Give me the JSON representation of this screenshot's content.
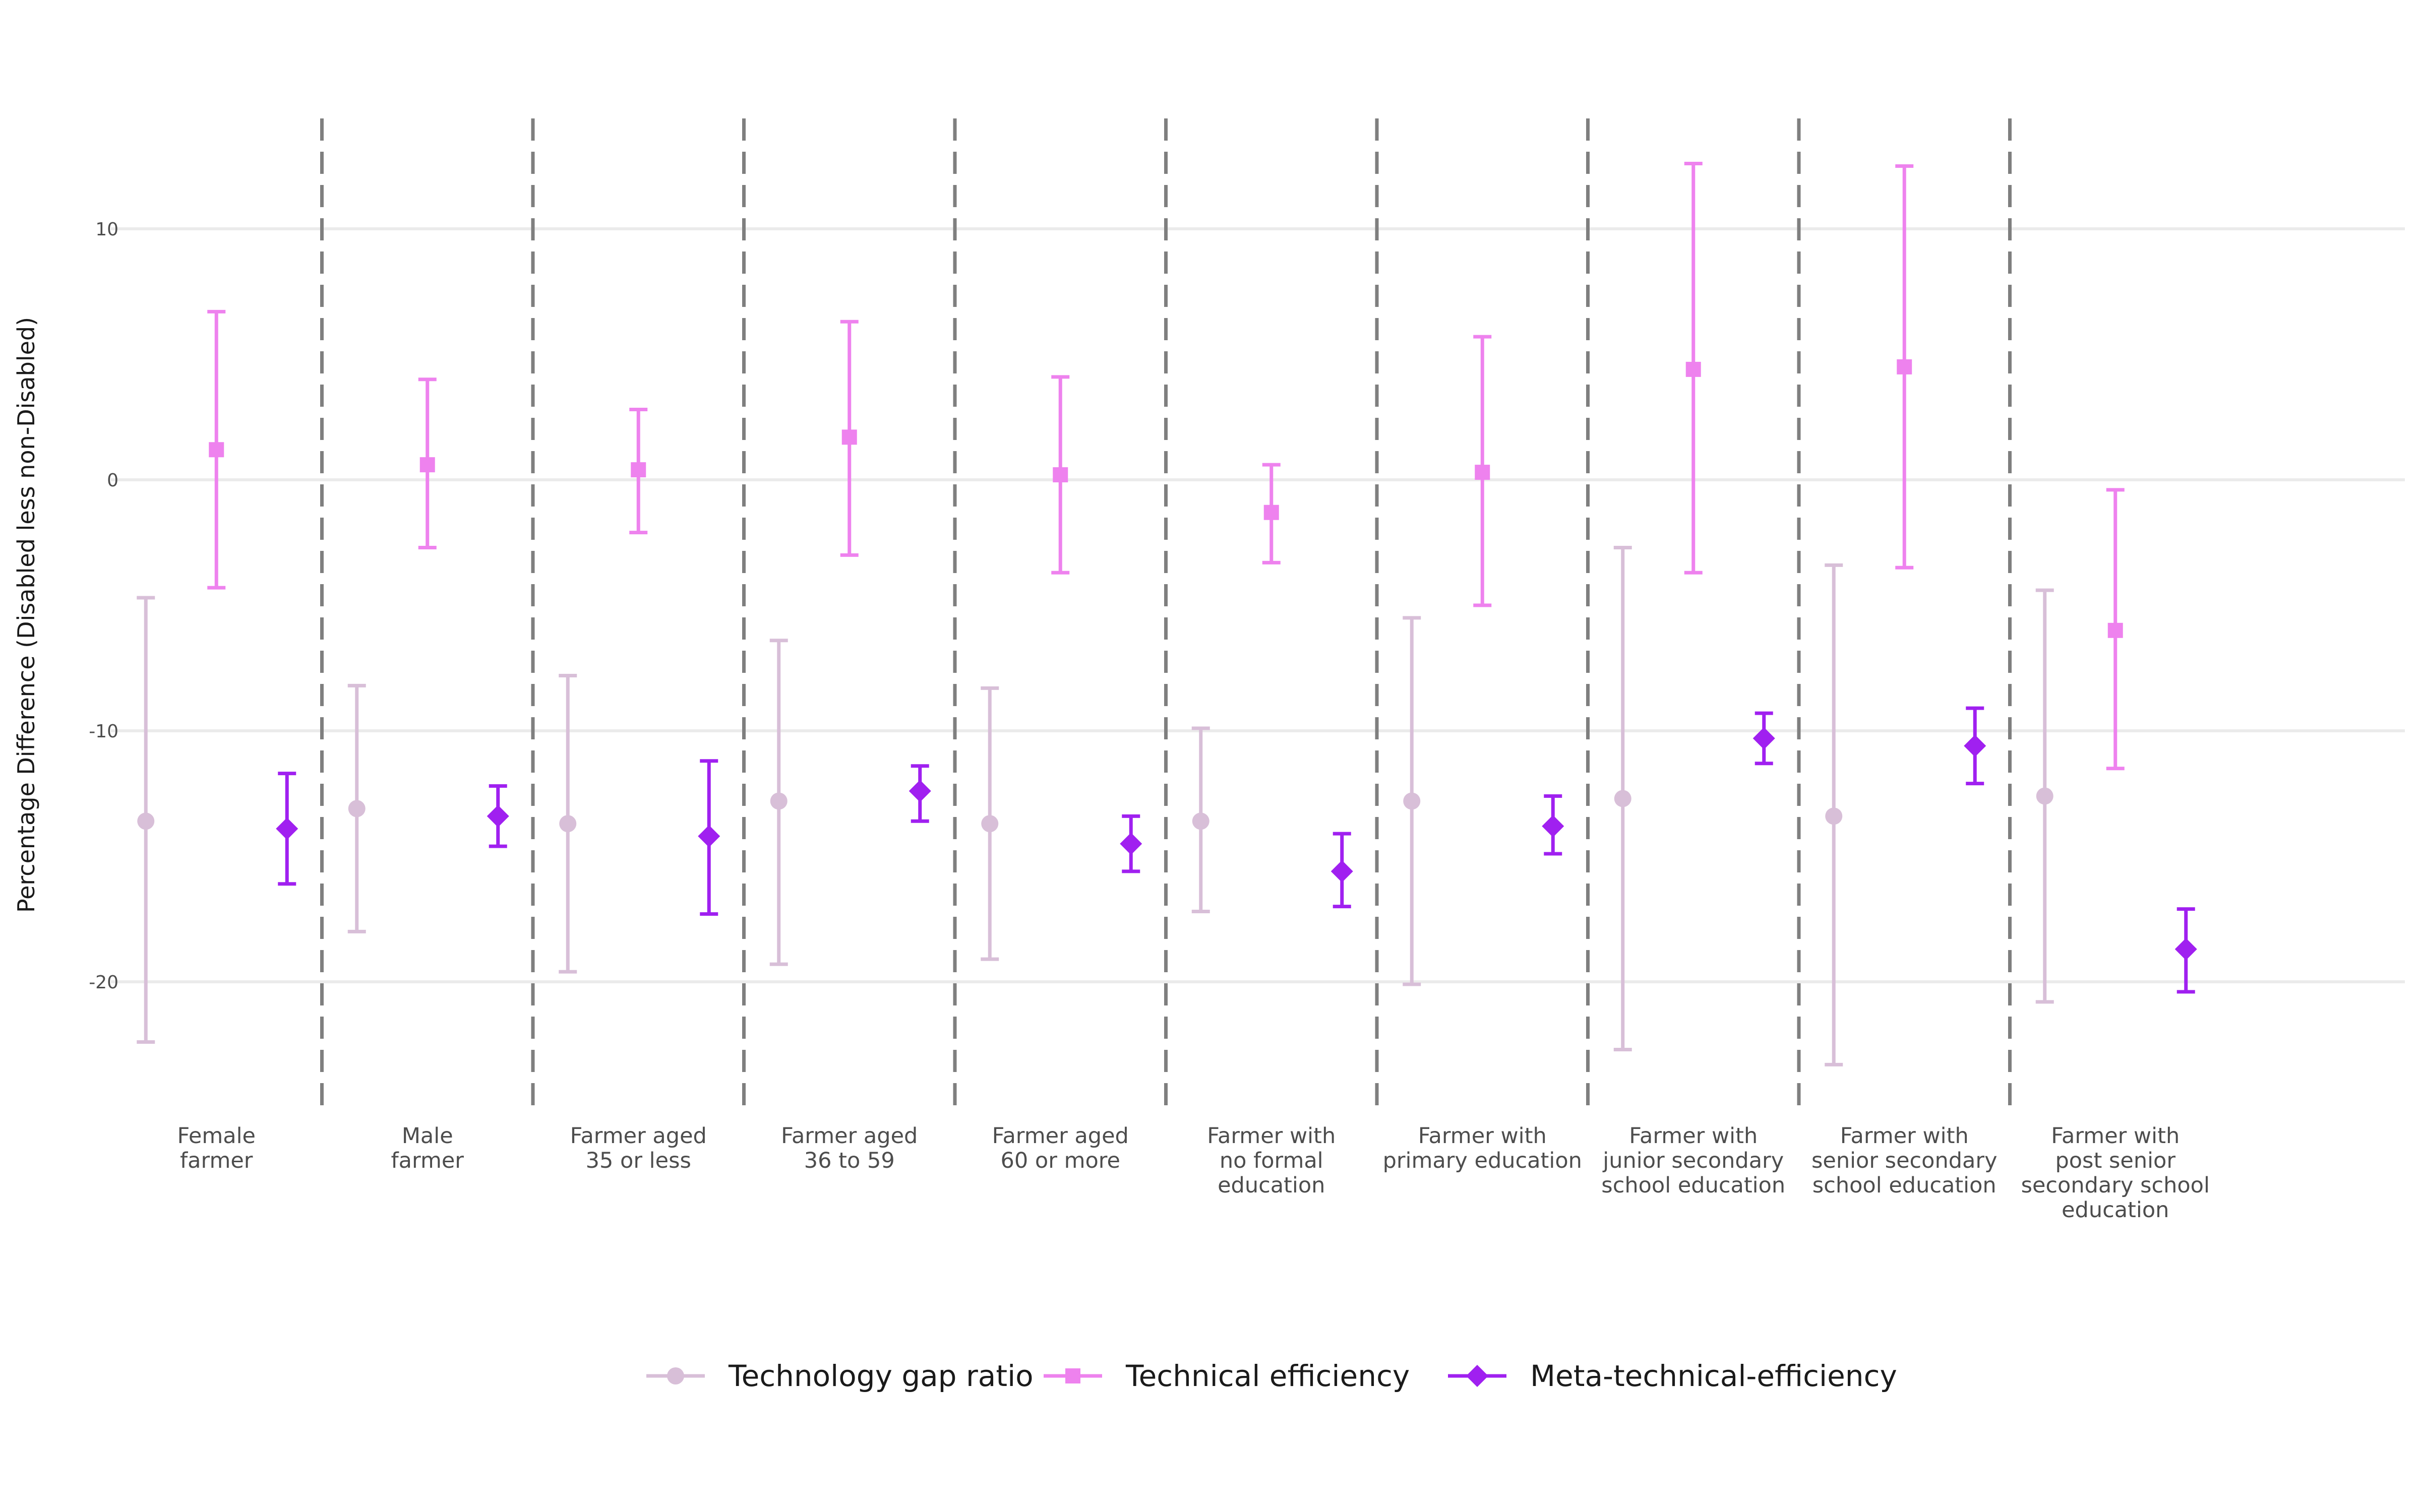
{
  "chart_data": {
    "type": "errorbar",
    "title": "",
    "xlabel": "",
    "ylabel": "Percentage Difference (Disabled less non-Disabled)",
    "ylim": [
      -25,
      14.5
    ],
    "yticks": [
      10,
      0,
      -10,
      -20
    ],
    "ytick_labels": [
      "10",
      "0",
      "-10",
      "-20"
    ],
    "grid": "horizontal",
    "separators": "dashed vertical lines between groups",
    "legend_position": "bottom",
    "categories": [
      "Female\nfarmer",
      "Male\nfarmer",
      "Farmer aged\n35 or less",
      "Farmer aged\n36 to 59",
      "Farmer aged\n60 or more",
      "Farmer with\nno formal\neducation",
      "Farmer with\nprimary education",
      "Farmer with\njunior secondary\nschool education",
      "Farmer with\nsenior secondary\nschool education",
      "Farmer with\npost senior\nsecondary school\neducation"
    ],
    "series": [
      {
        "name": "Technology gap ratio",
        "color": "#d8bfd8",
        "marker": "circle",
        "values": [
          -13.6,
          -13.1,
          -13.7,
          -12.8,
          -13.7,
          -13.6,
          -12.8,
          -12.7,
          -13.4,
          -12.6
        ],
        "lower": [
          -22.4,
          -18.0,
          -19.6,
          -19.3,
          -19.1,
          -17.2,
          -20.1,
          -22.7,
          -23.3,
          -20.8
        ],
        "upper": [
          -4.7,
          -8.2,
          -7.8,
          -6.4,
          -8.3,
          -9.9,
          -5.5,
          -2.7,
          -3.4,
          -4.4
        ]
      },
      {
        "name": "Technical efficiency",
        "color": "#ee82ee",
        "marker": "square",
        "values": [
          1.2,
          0.6,
          0.4,
          1.7,
          0.2,
          -1.3,
          0.3,
          4.4,
          4.5,
          -6.0
        ],
        "lower": [
          -4.3,
          -2.7,
          -2.1,
          -3.0,
          -3.7,
          -3.3,
          -5.0,
          -3.7,
          -3.5,
          -11.5
        ],
        "upper": [
          6.7,
          4.0,
          2.8,
          6.3,
          4.1,
          0.6,
          5.7,
          12.6,
          12.5,
          -0.4
        ]
      },
      {
        "name": "Meta-technical-efficiency",
        "color": "#a020f0",
        "marker": "diamond",
        "values": [
          -13.9,
          -13.4,
          -14.2,
          -12.4,
          -14.5,
          -15.6,
          -13.8,
          -10.3,
          -10.6,
          -18.7
        ],
        "lower": [
          -16.1,
          -14.6,
          -17.3,
          -13.6,
          -15.6,
          -17.0,
          -14.9,
          -11.3,
          -12.1,
          -20.4
        ],
        "upper": [
          -11.7,
          -12.2,
          -11.2,
          -11.4,
          -13.4,
          -14.1,
          -12.6,
          -9.3,
          -9.1,
          -17.1
        ]
      }
    ]
  }
}
